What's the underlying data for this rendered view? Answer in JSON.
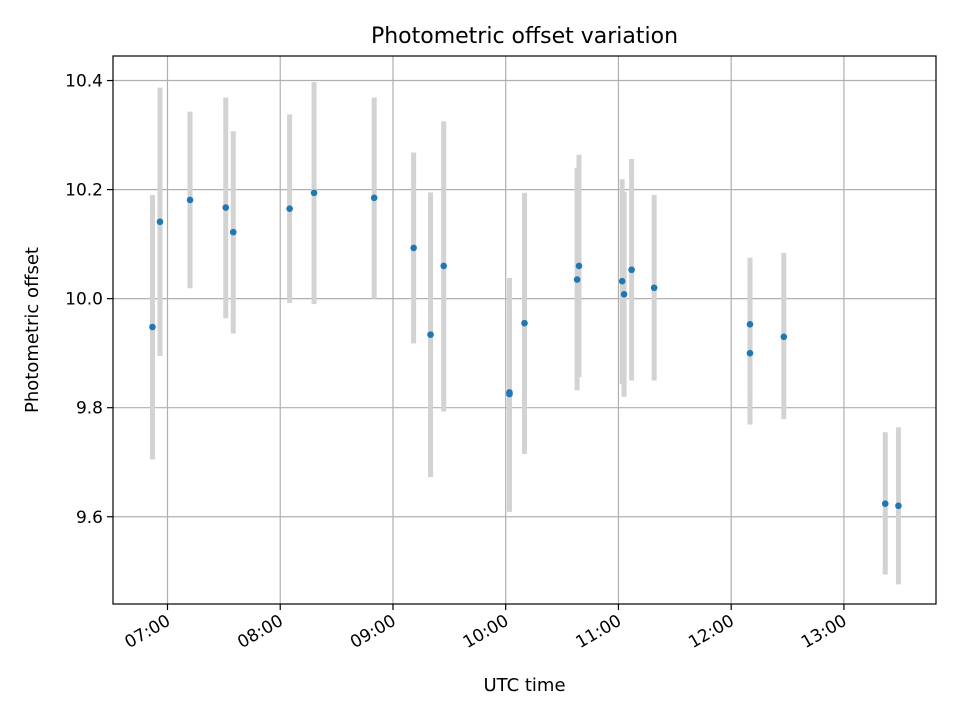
{
  "chart_data": {
    "type": "scatter",
    "title": "Photometric offset variation",
    "xlabel": "UTC time",
    "ylabel": "Photometric offset",
    "xlim": [
      "06:31",
      "13:49"
    ],
    "ylim": [
      9.44,
      10.445
    ],
    "x_ticks": [
      "07:00",
      "08:00",
      "09:00",
      "10:00",
      "11:00",
      "12:00",
      "13:00"
    ],
    "y_ticks": [
      "9.6",
      "9.8",
      "10.0",
      "10.2",
      "10.4"
    ],
    "grid": true,
    "colors": {
      "point": "#1f77b4",
      "errorbar": "#d3d3d3",
      "grid": "#b0b0b0"
    },
    "series": [
      {
        "points": [
          {
            "x": "06:52",
            "y": 9.948,
            "ylo": 9.705,
            "yhi": 10.19
          },
          {
            "x": "06:56",
            "y": 10.141,
            "ylo": 9.895,
            "yhi": 10.387
          },
          {
            "x": "07:12",
            "y": 10.181,
            "ylo": 10.019,
            "yhi": 10.343
          },
          {
            "x": "07:31",
            "y": 10.167,
            "ylo": 9.964,
            "yhi": 10.369
          },
          {
            "x": "07:35",
            "y": 10.122,
            "ylo": 9.936,
            "yhi": 10.307
          },
          {
            "x": "08:05",
            "y": 10.165,
            "ylo": 9.992,
            "yhi": 10.338
          },
          {
            "x": "08:18",
            "y": 10.194,
            "ylo": 9.99,
            "yhi": 10.397
          },
          {
            "x": "08:50",
            "y": 10.185,
            "ylo": 10.0,
            "yhi": 10.369
          },
          {
            "x": "09:11",
            "y": 10.093,
            "ylo": 9.918,
            "yhi": 10.268
          },
          {
            "x": "09:20",
            "y": 9.934,
            "ylo": 9.673,
            "yhi": 10.195
          },
          {
            "x": "09:27",
            "y": 10.06,
            "ylo": 9.793,
            "yhi": 10.325
          },
          {
            "x": "10:02",
            "y": 9.828,
            "ylo": 9.609,
            "yhi": 10.038
          },
          {
            "x": "10:02",
            "y": 9.825,
            "ylo": 9.668,
            "yhi": 9.98
          },
          {
            "x": "10:10",
            "y": 9.955,
            "ylo": 9.715,
            "yhi": 10.194
          },
          {
            "x": "10:38",
            "y": 10.035,
            "ylo": 9.832,
            "yhi": 10.24
          },
          {
            "x": "10:39",
            "y": 10.06,
            "ylo": 9.856,
            "yhi": 10.264
          },
          {
            "x": "11:02",
            "y": 10.032,
            "ylo": 9.843,
            "yhi": 10.219
          },
          {
            "x": "11:03",
            "y": 10.008,
            "ylo": 9.82,
            "yhi": 10.196
          },
          {
            "x": "11:07",
            "y": 10.053,
            "ylo": 9.85,
            "yhi": 10.256
          },
          {
            "x": "11:19",
            "y": 10.02,
            "ylo": 9.85,
            "yhi": 10.19
          },
          {
            "x": "12:10",
            "y": 9.953,
            "ylo": 9.832,
            "yhi": 10.075
          },
          {
            "x": "12:10",
            "y": 9.9,
            "ylo": 9.769,
            "yhi": 10.033
          },
          {
            "x": "12:28",
            "y": 9.93,
            "ylo": 9.779,
            "yhi": 10.084
          },
          {
            "x": "13:22",
            "y": 9.624,
            "ylo": 9.494,
            "yhi": 9.755
          },
          {
            "x": "13:29",
            "y": 9.62,
            "ylo": 9.476,
            "yhi": 9.764
          }
        ]
      }
    ]
  }
}
